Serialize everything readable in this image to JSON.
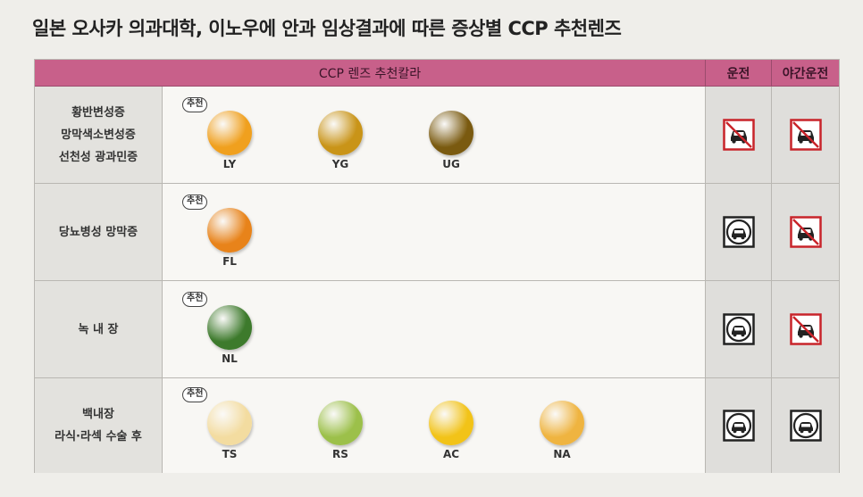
{
  "title": "일본 오사카 의과대학, 이노우에 안과 임상결과에 따른 증상별 CCP 추천렌즈",
  "header": {
    "lens_color": "CCP 렌즈 추천칼라",
    "driving": "운전",
    "night_driving": "야간운전"
  },
  "recommend_badge": "추천",
  "rows": [
    {
      "conditions": [
        "황반변성증",
        "망막색소변성증",
        "선천성 광과민증"
      ],
      "lenses": [
        {
          "code": "LY",
          "color": "#f0a01e",
          "recommended": true
        },
        {
          "code": "YG",
          "color": "#c99418",
          "recommended": false
        },
        {
          "code": "UG",
          "color": "#7a5a10",
          "recommended": false
        }
      ],
      "driving": "not-allowed",
      "night_driving": "not-allowed"
    },
    {
      "conditions": [
        "당뇨병성 망막증"
      ],
      "lenses": [
        {
          "code": "FL",
          "color": "#e8831a",
          "recommended": true
        }
      ],
      "driving": "allowed",
      "night_driving": "not-allowed"
    },
    {
      "conditions": [
        "녹 내 장"
      ],
      "lenses": [
        {
          "code": "NL",
          "color": "#3d7a2c",
          "recommended": true
        }
      ],
      "driving": "allowed",
      "night_driving": "not-allowed"
    },
    {
      "conditions": [
        "백내장",
        "라식·라섹 수술 후"
      ],
      "lenses": [
        {
          "code": "TS",
          "color": "#f3dca0",
          "recommended": true
        },
        {
          "code": "RS",
          "color": "#9cc04a",
          "recommended": false
        },
        {
          "code": "AC",
          "color": "#f2c318",
          "recommended": false
        },
        {
          "code": "NA",
          "color": "#efb440",
          "recommended": false
        }
      ],
      "driving": "allowed",
      "night_driving": "allowed"
    }
  ],
  "colors": {
    "header_bg": "#c8608a",
    "prohibited_red": "#c8242a"
  }
}
